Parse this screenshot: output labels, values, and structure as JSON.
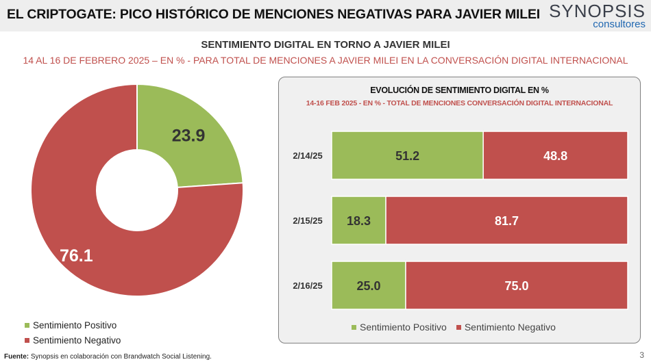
{
  "header": {
    "title": "EL CRIPTOGATE: PICO HISTÓRICO DE MENCIONES NEGATIVAS PARA JAVIER MILEI",
    "logo_main": "SYNOPSIS",
    "logo_sub": "consultores"
  },
  "subtitle": "SENTIMIENTO DIGITAL EN TORNO A JAVIER MILEI",
  "subtitle2": "14 AL 16 DE FEBRERO 2025 – EN % - PARA TOTAL DE MENCIONES A JAVIER MILEI EN LA CONVERSACIÓN DIGITAL INTERNACIONAL",
  "colors": {
    "positive": "#9bbb59",
    "negative": "#c0504d"
  },
  "chart_data": [
    {
      "type": "pie",
      "donut": true,
      "labels": [
        "Sentimiento Positivo",
        "Sentimiento Negativo"
      ],
      "values": [
        23.9,
        76.1
      ],
      "value_labels": [
        "23.9",
        "76.1"
      ],
      "legend_position": "bottom-left"
    },
    {
      "type": "bar",
      "orientation": "horizontal",
      "stacked": true,
      "title": "EVOLUCIÓN DE SENTIMIENTO DIGITAL EN %",
      "subtitle": "14-16 FEB 2025 - EN % - TOTAL DE MENCIONES CONVERSACIÓN DIGITAL INTERNACIONAL",
      "categories": [
        "2/14/25",
        "2/15/25",
        "2/16/25"
      ],
      "series": [
        {
          "name": "Sentimiento Positivo",
          "values": [
            51.2,
            18.3,
            25.0
          ],
          "labels": [
            "51.2",
            "18.3",
            "25.0"
          ]
        },
        {
          "name": "Sentimiento Negativo",
          "values": [
            48.8,
            81.7,
            75.0
          ],
          "labels": [
            "48.8",
            "81.7",
            "75.0"
          ]
        }
      ],
      "xlim": [
        0,
        100
      ],
      "legend_position": "bottom"
    }
  ],
  "footer": {
    "label": "Fuente:",
    "text": " Synopsis en colaboración con Brandwatch Social Listening."
  },
  "page_number": "3"
}
